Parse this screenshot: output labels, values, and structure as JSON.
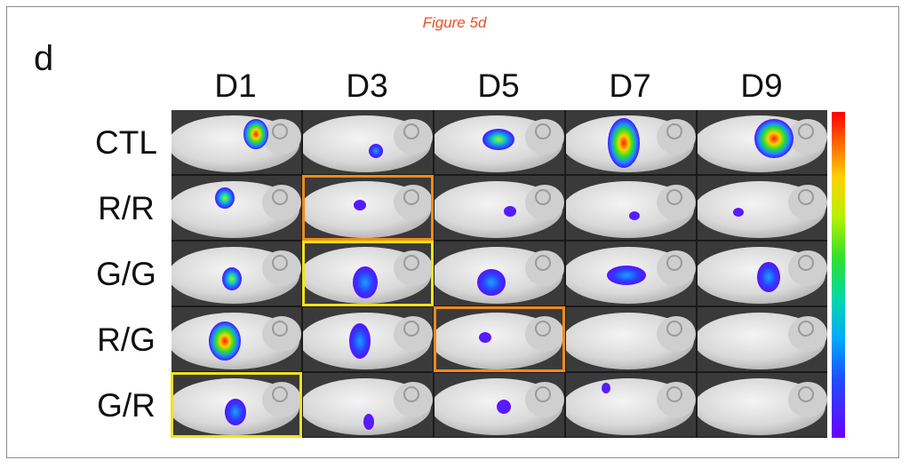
{
  "figure_title": "Figure 5d",
  "panel_letter": "d",
  "columns": [
    "D1",
    "D3",
    "D5",
    "D7",
    "D9"
  ],
  "rows": [
    "CTL",
    "R/R",
    "G/G",
    "R/G",
    "G/R"
  ],
  "colorbar": {
    "top_color": "#ff0000",
    "bottom_color": "#6a00ff"
  },
  "highlight_colors": {
    "orange": "#f08a1c",
    "yellow": "#f2e21a"
  }
}
